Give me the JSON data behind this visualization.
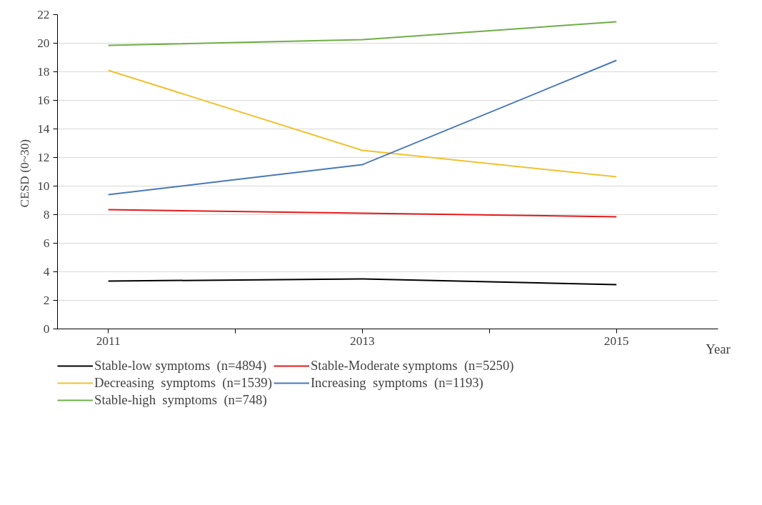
{
  "chart_data": {
    "type": "line",
    "xlabel": "Year",
    "ylabel": "CESD  (0~30)",
    "x": [
      2011,
      2013,
      2015
    ],
    "xlim": [
      2010.6,
      2015.8
    ],
    "xticks": [
      2011,
      {
        "value": 2012,
        "label": null
      },
      2013,
      {
        "value": 2014,
        "label": null
      },
      2015
    ],
    "ylim": [
      0,
      22
    ],
    "yticks": [
      0,
      2,
      4,
      6,
      8,
      10,
      12,
      14,
      16,
      18,
      20,
      22
    ],
    "grid": "y",
    "legend": "bottom",
    "marker": "none",
    "line_style": "solid",
    "series": [
      {
        "name": "Stable-low symptoms  (n=4894)",
        "color": "#000000",
        "values": [
          3.35,
          3.5,
          3.1
        ]
      },
      {
        "name": "Stable-Moderate symptoms  (n=5250)",
        "color": "#e31a1c",
        "values": [
          8.35,
          8.1,
          7.85
        ]
      },
      {
        "name": "Decreasing  symptoms  (n=1539)",
        "color": "#f2c12e",
        "values": [
          18.1,
          12.5,
          10.65
        ]
      },
      {
        "name": "Increasing  symptoms  (n=1193)",
        "color": "#4a78b8",
        "values": [
          9.4,
          11.5,
          18.8
        ]
      },
      {
        "name": "Stable-high  symptoms  (n=748)",
        "color": "#70ad47",
        "values": [
          19.85,
          20.25,
          21.5
        ]
      }
    ]
  }
}
